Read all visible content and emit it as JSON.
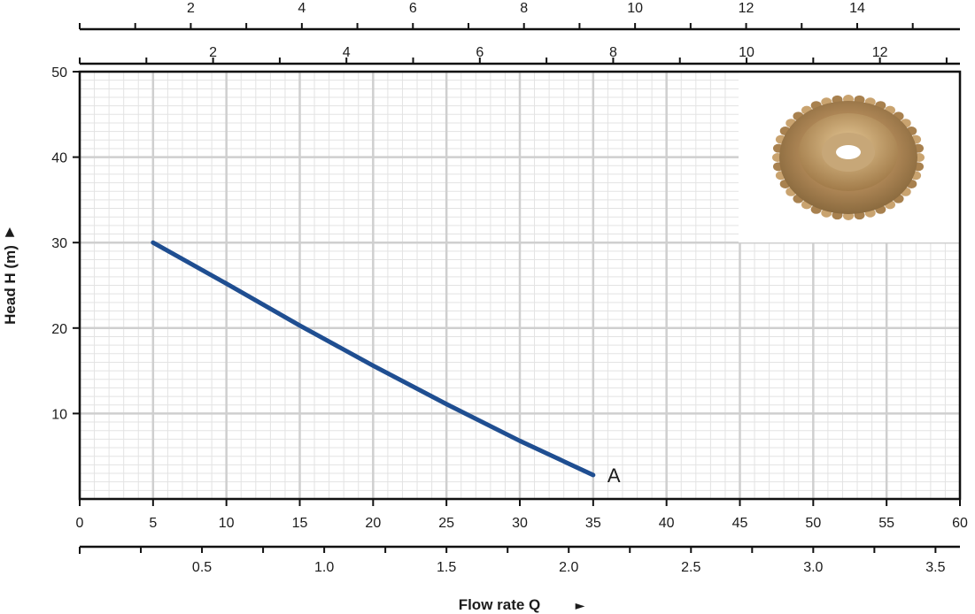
{
  "chart_data": {
    "type": "line",
    "title": "",
    "xlabel": "Flow rate Q",
    "ylabel": "Head H (m)",
    "xlabel_arrow": "►",
    "ylabel_arrow": "▲",
    "xlim": [
      0,
      60
    ],
    "ylim": [
      0,
      50
    ],
    "grid": true,
    "xticks": [
      "0",
      "5",
      "10",
      "15",
      "20",
      "25",
      "30",
      "35",
      "40",
      "45",
      "50",
      "55",
      "60"
    ],
    "yticks": [
      "10",
      "20",
      "30",
      "40",
      "50"
    ],
    "series": [
      {
        "name": "A",
        "color": "#1f4e91",
        "x": [
          5,
          10,
          15,
          20,
          25,
          30,
          35
        ],
        "y": [
          30,
          25.2,
          20.3,
          15.6,
          11.1,
          6.8,
          2.8
        ]
      }
    ],
    "secondary_axes": {
      "bottom_lower": {
        "range": [
          0,
          3.6
        ],
        "ticks": [
          "0.5",
          "1.0",
          "1.5",
          "2.0",
          "2.5",
          "3.0",
          "3.5"
        ]
      },
      "top_outer": {
        "range": [
          0,
          15.85
        ],
        "ticks": [
          "2",
          "4",
          "6",
          "8",
          "10",
          "12",
          "14"
        ]
      },
      "top_inner": {
        "range": [
          0,
          13.2
        ],
        "ticks": [
          "2",
          "4",
          "6",
          "8",
          "10",
          "12"
        ]
      }
    },
    "inset_image": "bronze-impeller"
  }
}
